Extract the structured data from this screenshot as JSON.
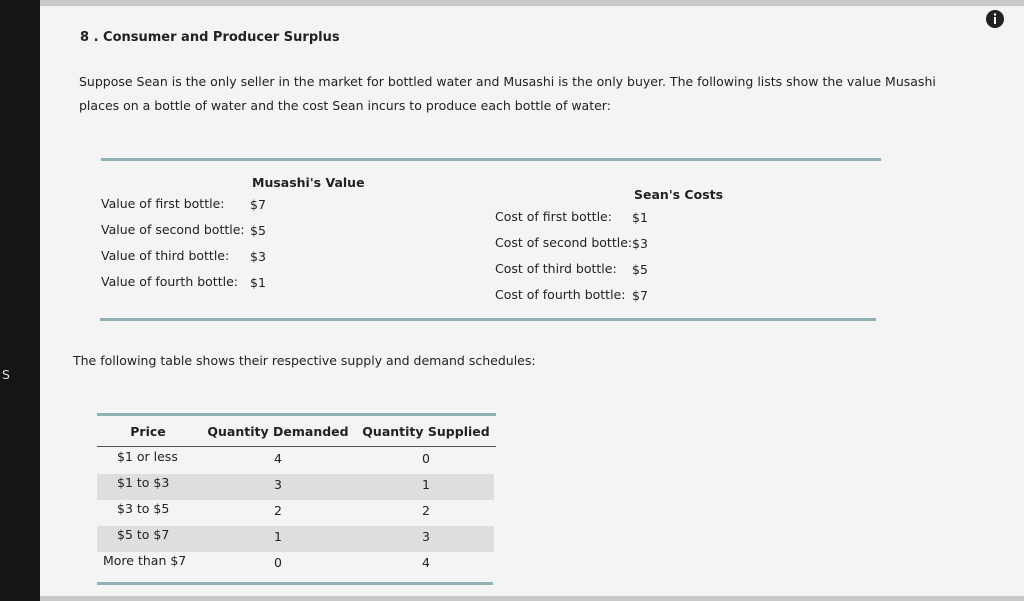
{
  "sidebar_label": "S",
  "header": {
    "title": "8 . Consumer and Producer Surplus"
  },
  "intro": "Suppose Sean is the only seller in the market for bottled water and Musashi is the only buyer. The following lists show the value Musashi places on a bottle of water and the cost Sean incurs to produce each bottle of water:",
  "values": {
    "heading": "Musashi's Value",
    "rows": [
      {
        "label": "Value of first bottle:",
        "amount": "$7"
      },
      {
        "label": "Value of second bottle:",
        "amount": "$5"
      },
      {
        "label": "Value of third bottle:",
        "amount": "$3"
      },
      {
        "label": "Value of fourth bottle:",
        "amount": "$1"
      }
    ]
  },
  "costs": {
    "heading": "Sean's Costs",
    "rows": [
      {
        "label": "Cost of first bottle:",
        "amount": "$1"
      },
      {
        "label": "Cost of second bottle:",
        "amount": "$3"
      },
      {
        "label": "Cost of third bottle:",
        "amount": "$5"
      },
      {
        "label": "Cost of fourth bottle:",
        "amount": "$7"
      }
    ]
  },
  "table_intro": "The following table shows their respective supply and demand schedules:",
  "table": {
    "columns": [
      "Price",
      "Quantity Demanded",
      "Quantity Supplied"
    ],
    "rows": [
      [
        "$1 or less",
        4,
        0
      ],
      [
        "$1 to $3",
        3,
        1
      ],
      [
        "$3 to $5",
        2,
        2
      ],
      [
        "$5 to $7",
        1,
        3
      ],
      [
        "More than $7",
        0,
        4
      ]
    ]
  }
}
